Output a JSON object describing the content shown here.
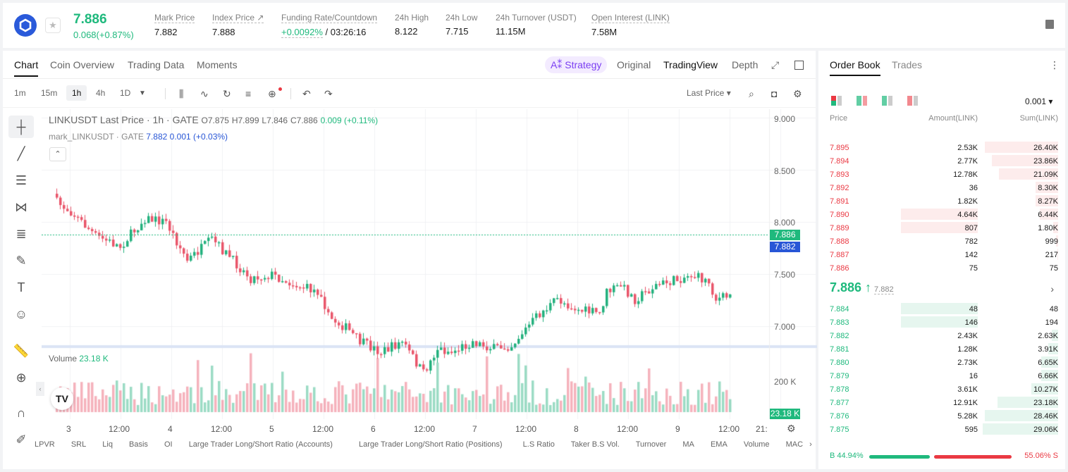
{
  "header": {
    "last_price": "7.886",
    "change": "0.068(+0.87%)",
    "stats": [
      {
        "label": "Mark Price",
        "value": "7.882"
      },
      {
        "label": "Index Price ↗",
        "value": "7.888"
      },
      {
        "label": "Funding Rate/Countdown",
        "value_rate": "+0.0092%",
        "value_count": "/ 03:26:16"
      },
      {
        "label": "24h High",
        "value": "8.122"
      },
      {
        "label": "24h Low",
        "value": "7.715"
      },
      {
        "label": "24h Turnover (USDT)",
        "value": "11.15M"
      },
      {
        "label": "Open Interest (LINK)",
        "value": "7.58M"
      }
    ]
  },
  "chart_tabs": [
    "Chart",
    "Coin Overview",
    "Trading Data",
    "Moments"
  ],
  "view_tabs": {
    "strategy": "A⁑ Strategy",
    "original": "Original",
    "tradingview": "TradingView",
    "depth": "Depth"
  },
  "timeframes": [
    "1m",
    "15m",
    "1h",
    "4h",
    "1D"
  ],
  "price_type": "Last Price ▾",
  "legend": {
    "main": "LINKUSDT Last Price · 1h · GATE",
    "o": "O7.875",
    "h": "H7.899",
    "l": "L7.846",
    "c": "C7.886",
    "chg": "0.009 (+0.11%)",
    "mark_name": "mark_LINKUSDT · GATE",
    "mark_val": "7.882",
    "mark_chg": "0.001 (+0.03%)"
  },
  "volume": {
    "label": "Volume",
    "value": "23.18 K"
  },
  "y_axis": [
    "9.000",
    "8.500",
    "8.000",
    "7.500",
    "7.000"
  ],
  "vol_axis": "200 K",
  "badges": {
    "last": "7.886",
    "mark": "7.882",
    "vol": "23.18 K"
  },
  "x_axis": [
    "3",
    "12:00",
    "4",
    "12:00",
    "5",
    "12:00",
    "6",
    "12:00",
    "7",
    "12:00",
    "8",
    "12:00",
    "9",
    "12:00",
    "21:"
  ],
  "bottom_indicators": [
    "LPVR",
    "SRL",
    "Liq",
    "Basis",
    "OI",
    "Large Trader Long/Short Ratio (Accounts)",
    "Large Trader Long/Short Ratio (Positions)",
    "L.S Ratio",
    "Taker B.S Vol.",
    "Turnover",
    "MA",
    "EMA",
    "Volume",
    "MAC"
  ],
  "orderbook": {
    "tabs": [
      "Order Book",
      "Trades"
    ],
    "precision": "0.001 ▾",
    "headers": [
      "Price",
      "Amount(LINK)",
      "Sum(LINK)"
    ],
    "asks": [
      {
        "p": "7.895",
        "a": "2.53K",
        "s": "26.40K",
        "af": 0,
        "sf": 0.9
      },
      {
        "p": "7.894",
        "a": "2.77K",
        "s": "23.86K",
        "af": 0,
        "sf": 0.81
      },
      {
        "p": "7.893",
        "a": "12.78K",
        "s": "21.09K",
        "af": 0,
        "sf": 0.72
      },
      {
        "p": "7.892",
        "a": "36",
        "s": "8.30K",
        "af": 0,
        "sf": 0.28
      },
      {
        "p": "7.891",
        "a": "1.82K",
        "s": "8.27K",
        "af": 0,
        "sf": 0.28
      },
      {
        "p": "7.890",
        "a": "4.64K",
        "s": "6.44K",
        "af": 0.33,
        "sf": 0.22
      },
      {
        "p": "7.889",
        "a": "807",
        "s": "1.80K",
        "af": 0.33,
        "sf": 0.06
      },
      {
        "p": "7.888",
        "a": "782",
        "s": "999",
        "af": 0,
        "sf": 0.03
      },
      {
        "p": "7.887",
        "a": "142",
        "s": "217",
        "af": 0,
        "sf": 0.01
      },
      {
        "p": "7.886",
        "a": "75",
        "s": "75",
        "af": 0,
        "sf": 0
      }
    ],
    "mid_price": "7.886 ↑",
    "mid_mark": "7.882",
    "bids": [
      {
        "p": "7.884",
        "a": "48",
        "s": "48",
        "af": 0.33,
        "sf": 0
      },
      {
        "p": "7.883",
        "a": "146",
        "s": "194",
        "af": 0.33,
        "sf": 0
      },
      {
        "p": "7.882",
        "a": "2.43K",
        "s": "2.63K",
        "af": 0,
        "sf": 0.08
      },
      {
        "p": "7.881",
        "a": "1.28K",
        "s": "3.91K",
        "af": 0,
        "sf": 0.12
      },
      {
        "p": "7.880",
        "a": "2.73K",
        "s": "6.65K",
        "af": 0,
        "sf": 0.21
      },
      {
        "p": "7.879",
        "a": "16",
        "s": "6.66K",
        "af": 0,
        "sf": 0.21
      },
      {
        "p": "7.878",
        "a": "3.61K",
        "s": "10.27K",
        "af": 0,
        "sf": 0.33
      },
      {
        "p": "7.877",
        "a": "12.91K",
        "s": "23.18K",
        "af": 0,
        "sf": 0.74
      },
      {
        "p": "7.876",
        "a": "5.28K",
        "s": "28.46K",
        "af": 0,
        "sf": 0.9
      },
      {
        "p": "7.875",
        "a": "595",
        "s": "29.06K",
        "af": 0,
        "sf": 0.92
      }
    ],
    "buy_pct": "B 44.94%",
    "sell_pct": "55.06% S",
    "buy_frac": 0.4494
  }
}
